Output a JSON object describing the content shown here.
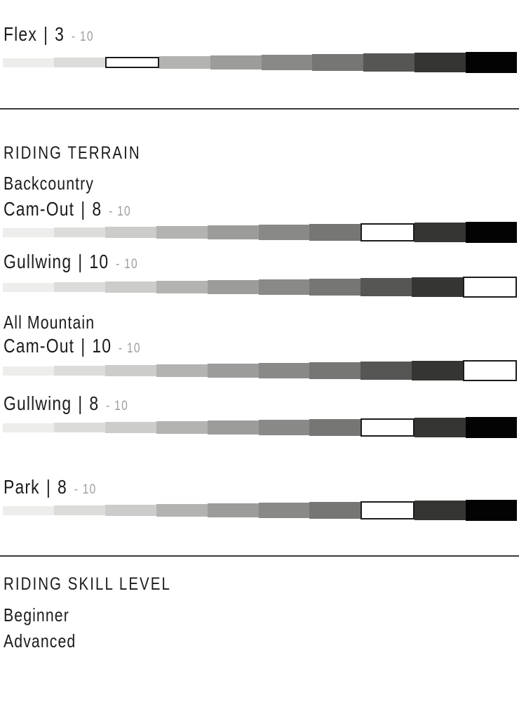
{
  "ui": {
    "separator": "|",
    "scale_suffix": "- 10"
  },
  "colors": {
    "background": "#ffffff",
    "text": "#1b1b1b",
    "muted": "#9e9e9e",
    "divider": "#3a3a3a",
    "selected_fill": "#ffffff",
    "selected_border": "#1b1b1b"
  },
  "scale": {
    "max": 10,
    "segment_colors": [
      "#ededeb",
      "#dcdcda",
      "#ccccca",
      "#b3b3b1",
      "#9c9c9a",
      "#898987",
      "#767674",
      "#565654",
      "#353533",
      "#030303"
    ]
  },
  "flex": {
    "label": "Flex",
    "value": 3
  },
  "riding_terrain": {
    "heading": "RIDING TERRAIN",
    "groups": [
      {
        "name": "Backcountry",
        "metrics": [
          {
            "label": "Cam-Out",
            "value": 8
          },
          {
            "label": "Gullwing",
            "value": 10
          }
        ]
      },
      {
        "name": "All Mountain",
        "metrics": [
          {
            "label": "Cam-Out",
            "value": 10
          },
          {
            "label": "Gullwing",
            "value": 8
          }
        ]
      }
    ],
    "park": {
      "label": "Park",
      "value": 8
    }
  },
  "riding_skill": {
    "heading": "RIDING SKILL LEVEL",
    "levels": [
      "Beginner",
      "Advanced"
    ]
  },
  "chart_data": {
    "type": "bar",
    "categories": [
      "Flex",
      "Backcountry Cam-Out",
      "Backcountry Gullwing",
      "All Mountain Cam-Out",
      "All Mountain Gullwing",
      "Park"
    ],
    "values": [
      3,
      8,
      10,
      10,
      8,
      8
    ],
    "ylim": [
      1,
      10
    ],
    "title": "",
    "xlabel": "",
    "ylabel": ""
  }
}
